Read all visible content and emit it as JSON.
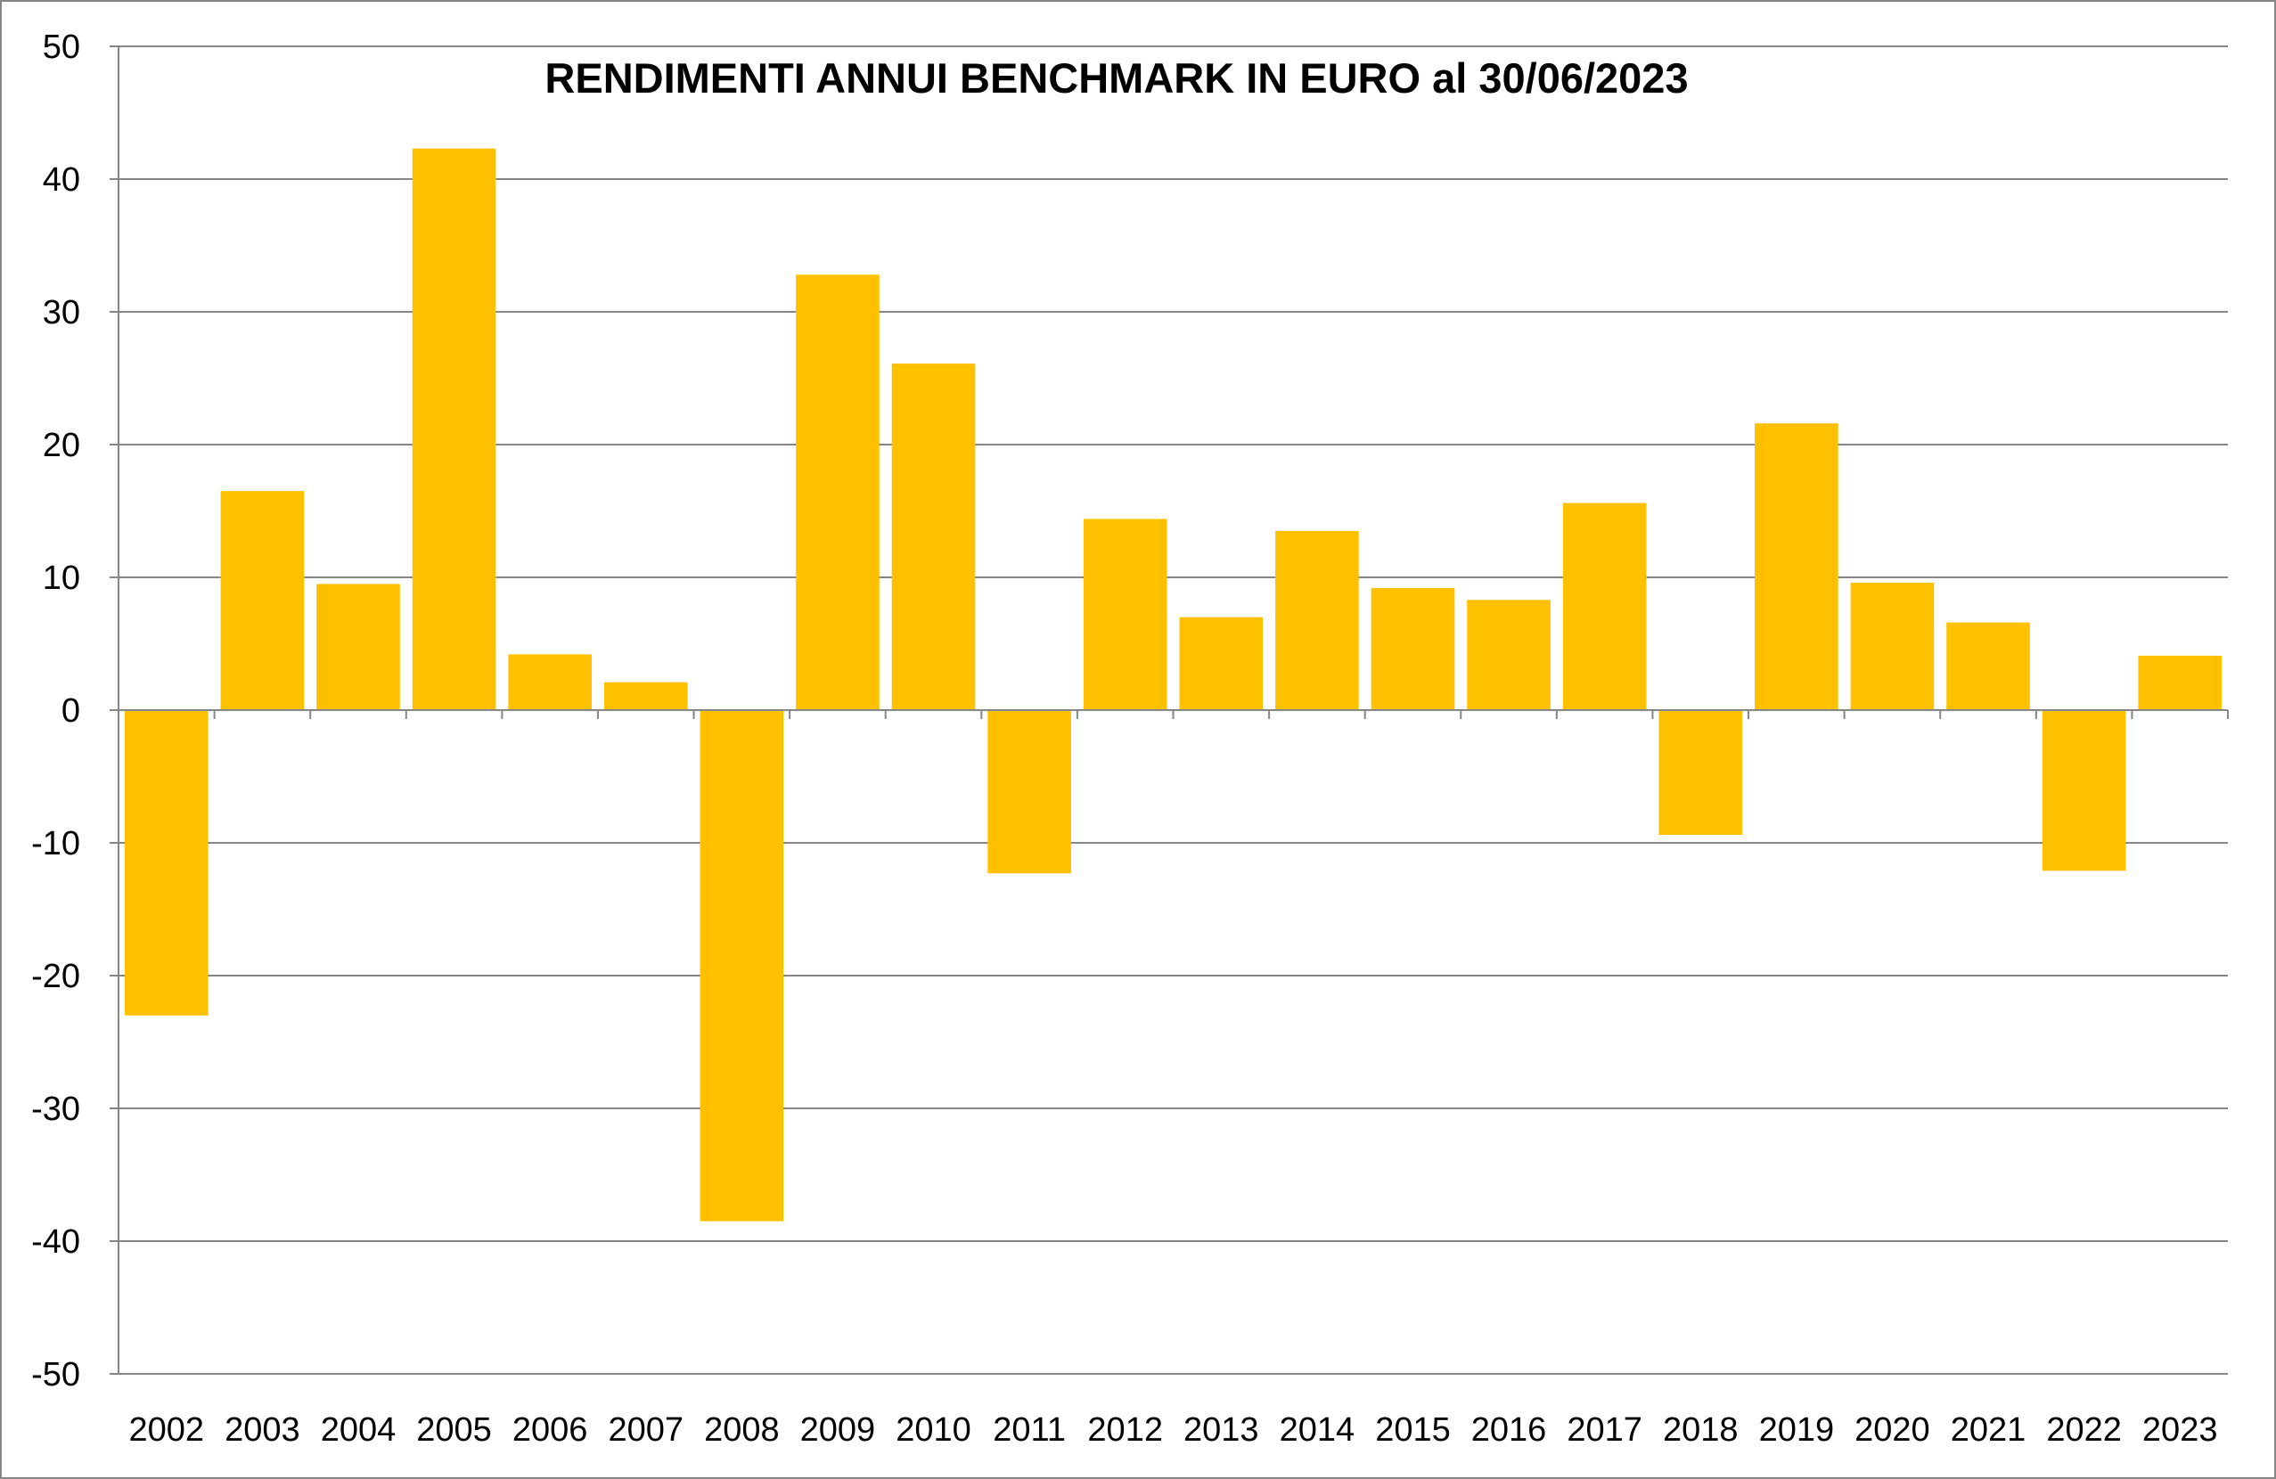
{
  "chart_data": {
    "type": "bar",
    "title": "RENDIMENTI ANNUI BENCHMARK IN EURO al 30/06/2023",
    "xlabel": "",
    "ylabel": "",
    "categories": [
      "2002",
      "2003",
      "2004",
      "2005",
      "2006",
      "2007",
      "2008",
      "2009",
      "2010",
      "2011",
      "2012",
      "2013",
      "2014",
      "2015",
      "2016",
      "2017",
      "2018",
      "2019",
      "2020",
      "2021",
      "2022",
      "2023"
    ],
    "values": [
      -23,
      16.5,
      9.5,
      42.3,
      4.2,
      2.1,
      -38.5,
      32.8,
      26.1,
      -12.3,
      14.4,
      7.0,
      13.5,
      9.2,
      8.3,
      15.6,
      -9.4,
      21.6,
      9.6,
      6.6,
      -12.1,
      4.1
    ],
    "ylim": [
      -50,
      50
    ],
    "yticks": [
      "50",
      "40",
      "30",
      "20",
      "10",
      "0",
      "-10",
      "-20",
      "-30",
      "-40",
      "-50"
    ],
    "grid": true,
    "legend": "none",
    "colors": {
      "bar": "#FFC000",
      "grid": "#868686",
      "axis": "#868686",
      "border": "#868686",
      "text": "#000000"
    }
  }
}
